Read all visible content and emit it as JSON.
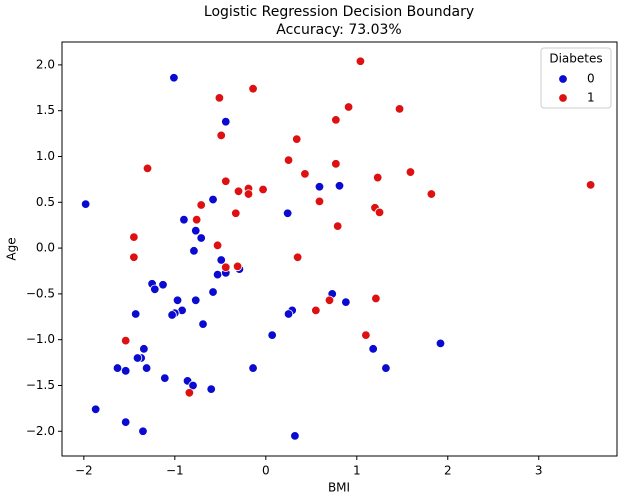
{
  "chart_data": {
    "type": "scatter",
    "title": "Logistic Regression Decision Boundary",
    "subtitle": "Accuracy: 73.03%",
    "x_label": "BMI",
    "y_label": "Age",
    "legend_title": "Diabetes",
    "legend_position": "upper right",
    "grid": false,
    "xlim": [
      -2.24,
      3.86
    ],
    "ylim": [
      -2.27,
      2.25
    ],
    "xticks": [
      {
        "value": -2,
        "label": "−2"
      },
      {
        "value": -1,
        "label": "−1"
      },
      0,
      1,
      2,
      3
    ],
    "yticks": [
      {
        "value": 2,
        "label": "2.0"
      },
      {
        "value": 1.5,
        "label": "1.5"
      },
      {
        "value": 1,
        "label": "1.0"
      },
      {
        "value": 0.5,
        "label": "0.5"
      },
      {
        "value": 0,
        "label": "0.0"
      },
      {
        "value": -0.5,
        "label": "−0.5"
      },
      {
        "value": -1,
        "label": "−1.0"
      },
      {
        "value": -1.5,
        "label": "−1.5"
      },
      {
        "value": -2,
        "label": "−2.0"
      }
    ],
    "series": [
      {
        "name": "0",
        "color": "#0a0ad0",
        "x": [
          -1.01,
          -1.98,
          -0.44,
          -0.58,
          -0.9,
          -0.77,
          -0.71,
          -0.79,
          -1.25,
          -1.22,
          -1.13,
          -0.49,
          -0.53,
          -0.44,
          -0.29,
          -0.58,
          -0.77,
          -0.97,
          -0.92,
          -1.0,
          -1.03,
          -1.43,
          -0.69,
          0.07,
          0.24,
          0.59,
          0.81,
          0.73,
          0.88,
          0.29,
          0.25,
          1.18,
          1.32,
          1.92,
          -1.34,
          -1.37,
          -1.41,
          -1.31,
          -1.63,
          -1.54,
          -1.11,
          -0.86,
          -0.8,
          -0.6,
          -0.14,
          -1.87,
          -1.54,
          -1.35,
          0.32
        ],
        "values": [
          1.86,
          0.48,
          1.38,
          0.53,
          0.31,
          0.19,
          0.11,
          -0.03,
          -0.39,
          -0.45,
          -0.4,
          -0.13,
          -0.29,
          -0.27,
          -0.23,
          -0.48,
          -0.57,
          -0.57,
          -0.68,
          -0.71,
          -0.73,
          -0.72,
          -0.83,
          -0.95,
          0.38,
          0.67,
          0.68,
          -0.5,
          -0.59,
          -0.68,
          -0.72,
          -1.1,
          -1.31,
          -1.04,
          -1.1,
          -1.2,
          -1.2,
          -1.31,
          -1.31,
          -1.34,
          -1.42,
          -1.45,
          -1.5,
          -1.54,
          -1.31,
          -1.76,
          -1.9,
          -2.0,
          -2.05
        ]
      },
      {
        "name": "1",
        "color": "#dd1111",
        "x": [
          1.04,
          -0.51,
          -0.14,
          -0.49,
          0.91,
          1.47,
          0.77,
          0.34,
          0.25,
          0.43,
          0.77,
          1.59,
          1.23,
          1.82,
          3.57,
          -1.3,
          -0.44,
          -0.3,
          -0.19,
          -0.19,
          -0.03,
          0.59,
          -0.71,
          -0.33,
          1.2,
          1.25,
          -0.76,
          0.79,
          -1.45,
          -0.53,
          -1.45,
          0.35,
          -0.44,
          -0.31,
          0.55,
          0.7,
          1.21,
          1.1,
          -1.54,
          -0.84
        ],
        "values": [
          2.04,
          1.64,
          1.74,
          1.23,
          1.54,
          1.52,
          1.4,
          1.19,
          0.96,
          0.81,
          0.92,
          0.83,
          0.77,
          0.59,
          0.69,
          0.87,
          0.73,
          0.62,
          0.65,
          0.59,
          0.64,
          0.51,
          0.47,
          0.38,
          0.44,
          0.39,
          0.31,
          0.24,
          0.12,
          0.03,
          -0.1,
          -0.1,
          -0.21,
          -0.2,
          -0.68,
          -0.57,
          -0.55,
          -0.95,
          -1.01,
          -1.58
        ]
      }
    ]
  }
}
